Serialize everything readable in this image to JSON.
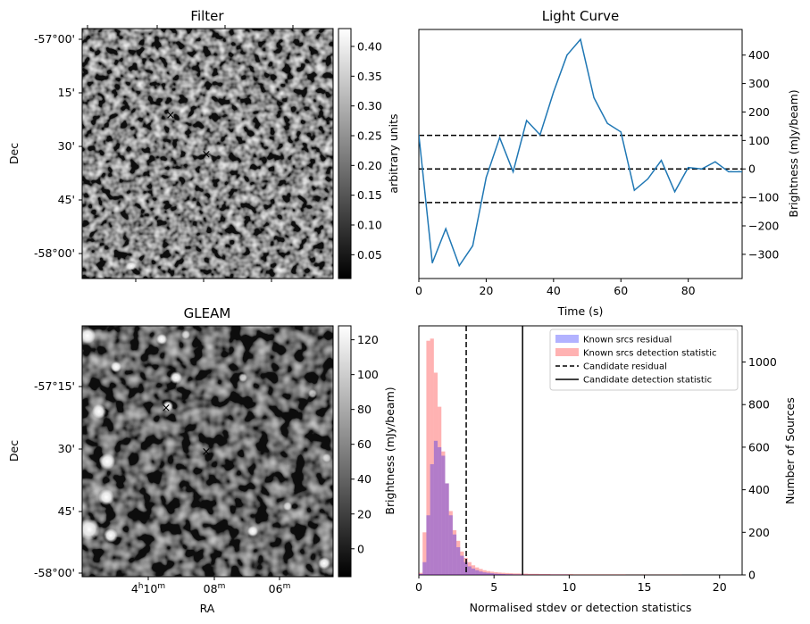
{
  "figure": {
    "panels": {
      "filter": {
        "title": "Filter",
        "ylabel": "Dec",
        "dec_ticks": [
          "-57°00'",
          "15'",
          "30'",
          "45'",
          "-58°00'"
        ],
        "colorbar": {
          "label": "arbitrary units",
          "min": 0.01,
          "max": 0.43,
          "ticks": [
            0.05,
            0.1,
            0.15,
            0.2,
            0.25,
            0.3,
            0.35,
            0.4
          ],
          "tick_labels": [
            "0.05",
            "0.10",
            "0.15",
            "0.20",
            "0.25",
            "0.30",
            "0.35",
            "0.40"
          ]
        },
        "markers": [
          {
            "name": "known-source-marker",
            "symbol": "×",
            "color": "#0000ff"
          },
          {
            "name": "candidate-marker",
            "symbol": "×",
            "color": "#ff0000"
          }
        ]
      },
      "gleam": {
        "title": "GLEAM",
        "ylabel": "Dec",
        "xlabel": "RA",
        "dec_ticks": [
          "-57°15'",
          "30'",
          "45'",
          "-58°00'"
        ],
        "ra_ticks": [
          {
            "main": "4",
            "sup1": "h",
            "mid": "10",
            "sup2": "m"
          },
          {
            "main": "08",
            "sup1": "",
            "mid": "",
            "sup2": "m"
          },
          {
            "main": "06",
            "sup1": "",
            "mid": "",
            "sup2": "m"
          }
        ],
        "colorbar": {
          "label": "Brightness (mJy/beam)",
          "min": -16,
          "max": 128,
          "ticks": [
            0,
            20,
            40,
            60,
            80,
            100,
            120
          ],
          "tick_labels": [
            "0",
            "20",
            "40",
            "60",
            "80",
            "100",
            "120"
          ]
        },
        "markers": [
          {
            "name": "known-source-marker",
            "symbol": "×",
            "color": "#0000ff"
          },
          {
            "name": "candidate-marker",
            "symbol": "×",
            "color": "#ff0000"
          }
        ]
      }
    },
    "colors": {
      "line": "#1f77b4",
      "known_residual": "#0000ff",
      "known_detection": "#ff0000",
      "candidate": "#000000"
    }
  },
  "chart_data": [
    {
      "type": "line",
      "title": "Light Curve",
      "xlabel": "Time (s)",
      "ylabel": "Brightness (mJy/beam)",
      "xlim": [
        0,
        96
      ],
      "ylim": [
        -385,
        490
      ],
      "xticks": [
        0,
        20,
        40,
        60,
        80
      ],
      "yticks": [
        -300,
        -200,
        -100,
        0,
        100,
        200,
        300,
        400
      ],
      "x": [
        0,
        4,
        8,
        12,
        16,
        20,
        24,
        28,
        32,
        36,
        40,
        44,
        48,
        52,
        56,
        60,
        64,
        68,
        72,
        76,
        80,
        84,
        88,
        92,
        96
      ],
      "y": [
        120,
        -330,
        -210,
        -340,
        -270,
        -30,
        110,
        -10,
        170,
        120,
        270,
        400,
        455,
        250,
        160,
        130,
        -75,
        -35,
        30,
        -80,
        5,
        0,
        25,
        -10,
        -10
      ],
      "hlines": [
        {
          "y": 118,
          "style": "dashed",
          "color": "#000000"
        },
        {
          "y": 0,
          "style": "dashed",
          "color": "#000000"
        },
        {
          "y": -118,
          "style": "dashed",
          "color": "#000000"
        }
      ]
    },
    {
      "type": "histogram",
      "xlabel": "Normalised stdev or detection statistics",
      "ylabel": "Number of Sources",
      "xlim": [
        0,
        21.5
      ],
      "ylim": [
        0,
        1170
      ],
      "xticks": [
        0,
        5,
        10,
        15,
        20
      ],
      "yticks": [
        0,
        200,
        400,
        600,
        800,
        1000
      ],
      "bin_width": 0.25,
      "series": [
        {
          "name": "Known srcs residual",
          "color": "#0000ff",
          "opacity": 0.3,
          "values": [
            5,
            60,
            280,
            520,
            630,
            600,
            560,
            430,
            280,
            190,
            130,
            90,
            60,
            40,
            30,
            22,
            16,
            12,
            10,
            8,
            6,
            5,
            4,
            3,
            3,
            2,
            2,
            2,
            1,
            1,
            1,
            1,
            1,
            1,
            1,
            1,
            1,
            1,
            1,
            1
          ]
        },
        {
          "name": "Known srcs detection statistic",
          "color": "#ff0000",
          "opacity": 0.3,
          "values": [
            10,
            200,
            1100,
            1110,
            950,
            790,
            580,
            430,
            300,
            210,
            160,
            110,
            80,
            60,
            45,
            35,
            28,
            22,
            18,
            15,
            13,
            11,
            10,
            9,
            8,
            7,
            7,
            6,
            6,
            5,
            5,
            5,
            4,
            4,
            4,
            3,
            3,
            3,
            3,
            3,
            3,
            2,
            2,
            2,
            2,
            2,
            2,
            2,
            2,
            2,
            2,
            2,
            2,
            2,
            2,
            1,
            1,
            1,
            1,
            1,
            1,
            1,
            1,
            1,
            1,
            1,
            1,
            1,
            1,
            1
          ]
        }
      ],
      "vlines": [
        {
          "name": "Candidate residual",
          "x": 3.15,
          "style": "dashed",
          "color": "#000000"
        },
        {
          "name": "Candidate detection statistic",
          "x": 6.9,
          "style": "solid",
          "color": "#000000"
        }
      ],
      "legend": [
        {
          "label": "Known srcs residual",
          "kind": "patch",
          "color": "#0000ff"
        },
        {
          "label": "Known srcs detection statistic",
          "kind": "patch",
          "color": "#ff0000"
        },
        {
          "label": "Candidate residual",
          "kind": "dashed",
          "color": "#000000"
        },
        {
          "label": "Candidate detection statistic",
          "kind": "solid",
          "color": "#000000"
        }
      ],
      "legend_position": "top-right"
    }
  ]
}
